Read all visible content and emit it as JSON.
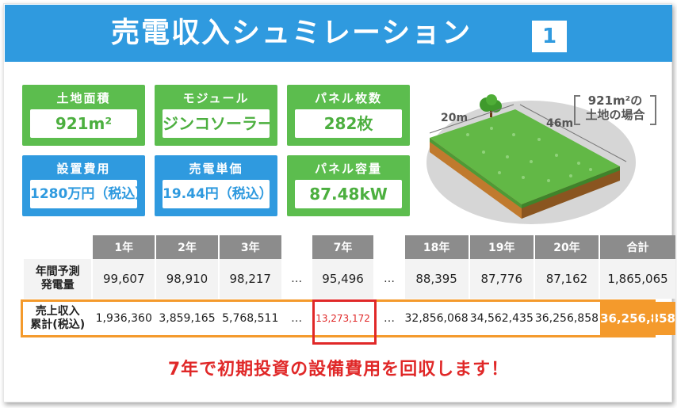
{
  "header": {
    "title": "売電収入シュミレーション",
    "badge": "1"
  },
  "boxes": [
    {
      "label": "土地面積",
      "value": "921m²",
      "color": "#5cbd4e"
    },
    {
      "label": "モジュール",
      "value": "ジンコソーラー",
      "color": "#5cbd4e"
    },
    {
      "label": "パネル枚数",
      "value": "282枚",
      "color": "#5cbd4e"
    },
    {
      "label": "設置費用",
      "value": "1280万円（税込）",
      "color": "#2f9adf"
    },
    {
      "label": "売電単価",
      "value": "19.44円（税込）",
      "color": "#2f9adf"
    },
    {
      "label": "パネル容量",
      "value": "87.48kW",
      "color": "#5cbd4e"
    }
  ],
  "land": {
    "caption_line1": "921m²の",
    "caption_line2": "土地の場合",
    "width_label": "20m",
    "length_label": "46m"
  },
  "table": {
    "headers": [
      "1年",
      "2年",
      "3年",
      "…",
      "7年",
      "…",
      "18年",
      "19年",
      "20年",
      "合計"
    ],
    "row1": {
      "label_line1": "年間予測",
      "label_line2": "発電量",
      "values": [
        "99,607",
        "98,910",
        "98,217",
        "…",
        "95,496",
        "…",
        "88,395",
        "87,776",
        "87,162",
        "1,865,065"
      ]
    },
    "row2": {
      "label_line1": "売上収入",
      "label_line2": "累計(税込)",
      "values": [
        "1,936,360",
        "3,859,165",
        "5,768,511",
        "…",
        "13,273,172",
        "…",
        "32,856,068",
        "34,562,435",
        "36,256,858",
        "36,256,858"
      ]
    }
  },
  "message": "7年で初期投資の設備費用を回収します！",
  "colors": {
    "blue": "#2f9adf",
    "green": "#5cbd4e",
    "orange": "#f49a2c",
    "red": "#e02828",
    "gray": "#8c8c8c"
  }
}
